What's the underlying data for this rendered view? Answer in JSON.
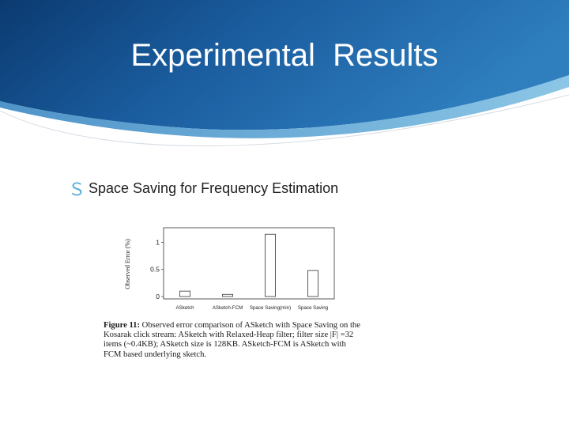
{
  "slide": {
    "title": "Experimental  Results",
    "bullet_icon": "s-bullet-icon",
    "bullet_text": "Space Saving for Frequency Estimation",
    "colors": {
      "header_dark": "#0c3f78",
      "header_mid": "#1f68a9",
      "header_light": "#6fb2dc",
      "bullet": "#5aaed9"
    }
  },
  "chart_data": {
    "type": "bar",
    "categories": [
      "ASketch",
      "ASketch-FCM",
      "Space Saving(min)",
      "Space Saving"
    ],
    "values": [
      0.1,
      0.04,
      1.15,
      0.48
    ],
    "title": "",
    "xlabel": "",
    "ylabel": "Observed Error (%)",
    "yticks": [
      0,
      0.5,
      1
    ],
    "ytick_labels": [
      "0",
      "0.5",
      "1"
    ],
    "ylim": [
      0,
      1.27
    ],
    "grid": false,
    "legend": "none"
  },
  "caption": {
    "figure_label": "Figure 11:",
    "text": "Observed error comparison of ASketch with Space Saving on the Kosarak click stream: ASketch with Relaxed-Heap filter; filter size |F| =32 items (~0.4KB); ASketch size is 128KB. ASketch-FCM is ASketch with FCM based underlying sketch."
  }
}
